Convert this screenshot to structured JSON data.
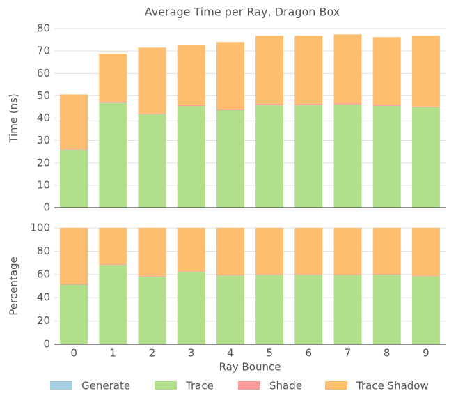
{
  "chart_data": [
    {
      "type": "bar",
      "stacked": true,
      "title": "Average Time per Ray, Dragon Box",
      "ylabel": "Time (ns)",
      "ylim": [
        0,
        80
      ],
      "yticks": [
        0,
        10,
        20,
        30,
        40,
        50,
        60,
        70,
        80
      ],
      "grid": true,
      "legend": "bottom",
      "series": [
        {
          "name": "Generate",
          "color": "#a6cee3",
          "values": [
            0.1,
            0.1,
            0.1,
            0.1,
            0.1,
            0.1,
            0.1,
            0.1,
            0.1,
            0.1
          ]
        },
        {
          "name": "Trace",
          "color": "#b2df8a",
          "values": [
            25.8,
            46.8,
            41.7,
            45.3,
            43.5,
            45.7,
            45.7,
            46.0,
            45.4,
            44.8
          ]
        },
        {
          "name": "Shade",
          "color": "#fb9a99",
          "values": [
            0.3,
            0.5,
            0.3,
            0.4,
            0.3,
            0.5,
            0.5,
            0.5,
            0.5,
            0.3
          ]
        },
        {
          "name": "Trace Shadow",
          "color": "#fdbf6f",
          "values": [
            24.4,
            21.4,
            29.4,
            27.0,
            30.1,
            30.5,
            30.5,
            30.8,
            30.2,
            31.6
          ]
        }
      ]
    },
    {
      "type": "bar",
      "stacked": true,
      "ylabel": "Percentage",
      "xlabel": "Ray Bounce",
      "categories": [
        "0",
        "1",
        "2",
        "3",
        "4",
        "5",
        "6",
        "7",
        "8",
        "9"
      ],
      "ylim": [
        0,
        100
      ],
      "yticks": [
        0,
        20,
        40,
        60,
        80,
        100
      ],
      "grid": true,
      "series": [
        {
          "color": "#a6cee3",
          "values": [
            0.2,
            0.2,
            0.2,
            0.2,
            0.2,
            0.2,
            0.2,
            0.2,
            0.2,
            0.2
          ]
        },
        {
          "color": "#b2df8a",
          "values": [
            51,
            68,
            58,
            62,
            59,
            59.5,
            59.5,
            59.4,
            59.6,
            58.3
          ]
        },
        {
          "color": "#fb9a99",
          "values": [
            0.6,
            0.6,
            0.6,
            0.6,
            0.6,
            0.6,
            0.6,
            0.6,
            0.6,
            0.6
          ]
        },
        {
          "color": "#fdbf6f",
          "values": [
            48.2,
            31.2,
            41.2,
            37.2,
            40.2,
            39.7,
            39.7,
            39.8,
            39.6,
            40.9
          ]
        }
      ]
    }
  ]
}
